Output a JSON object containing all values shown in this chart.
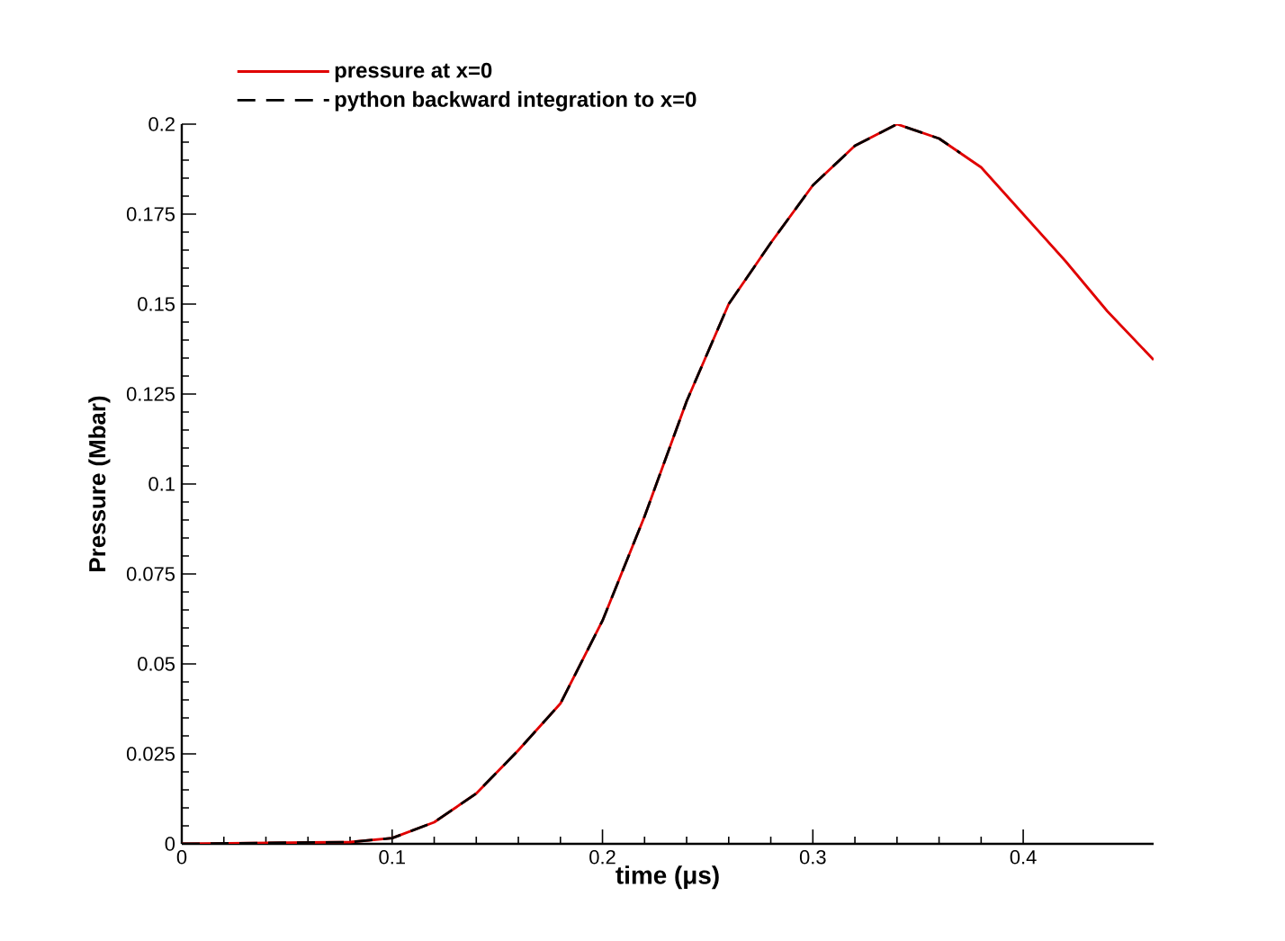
{
  "chart_data": {
    "type": "line",
    "xlabel": "time (μs)",
    "ylabel": "Pressure (Mbar)",
    "xlim": [
      0,
      0.462
    ],
    "ylim": [
      0,
      0.2
    ],
    "xticks": [
      0,
      0.1,
      0.2,
      0.3,
      0.4
    ],
    "yticks": [
      0,
      0.025,
      0.05,
      0.075,
      0.1,
      0.125,
      0.15,
      0.175,
      0.2
    ],
    "grid": false,
    "legend": "top left",
    "marker": "none",
    "series": [
      {
        "name": "pressure at x=0",
        "color": "#e00000",
        "line_style": "solid",
        "x": [
          0,
          0.08,
          0.1,
          0.12,
          0.14,
          0.16,
          0.18,
          0.2,
          0.22,
          0.24,
          0.26,
          0.28,
          0.3,
          0.32,
          0.34,
          0.36,
          0.38,
          0.4,
          0.42,
          0.44,
          0.462
        ],
        "values": [
          0,
          0.0005,
          0.0016,
          0.006,
          0.014,
          0.026,
          0.039,
          0.062,
          0.091,
          0.123,
          0.15,
          0.167,
          0.183,
          0.194,
          0.2,
          0.196,
          0.188,
          0.175,
          0.162,
          0.148,
          0.1345
        ]
      },
      {
        "name": "python backward integration to x=0",
        "color": "#000000",
        "line_style": "dashed",
        "x": [
          0,
          0.08,
          0.1,
          0.12,
          0.14,
          0.16,
          0.18,
          0.2,
          0.22,
          0.24,
          0.26,
          0.28,
          0.3,
          0.32,
          0.34,
          0.36,
          0.37
        ],
        "values": [
          0,
          0.0005,
          0.0016,
          0.006,
          0.014,
          0.026,
          0.039,
          0.062,
          0.091,
          0.123,
          0.15,
          0.167,
          0.183,
          0.194,
          0.2,
          0.196,
          0.192
        ]
      }
    ]
  }
}
